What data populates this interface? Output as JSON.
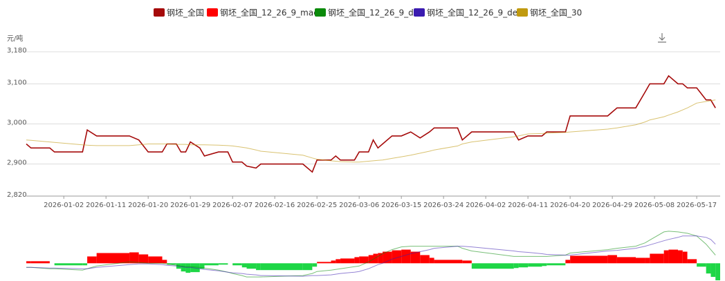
{
  "chart_data": [
    {
      "type": "line",
      "y_label": "元/吨",
      "x": [
        "2025-12-25",
        "2025-12-26",
        "2025-12-30",
        "2025-12-31",
        "2026-01-06",
        "2026-01-07",
        "2026-01-09",
        "2026-01-16",
        "2026-01-18",
        "2026-01-20",
        "2026-01-23",
        "2026-01-24",
        "2026-01-26",
        "2026-01-27",
        "2026-01-28",
        "2026-01-29",
        "2026-01-31",
        "2026-02-01",
        "2026-02-04",
        "2026-02-06",
        "2026-02-07",
        "2026-02-09",
        "2026-02-10",
        "2026-02-12",
        "2026-02-13",
        "2026-02-22",
        "2026-02-24",
        "2026-02-25",
        "2026-02-28",
        "2026-03-01",
        "2026-03-02",
        "2026-03-05",
        "2026-03-06",
        "2026-03-08",
        "2026-03-09",
        "2026-03-10",
        "2026-03-11",
        "2026-03-13",
        "2026-03-15",
        "2026-03-17",
        "2026-03-19",
        "2026-03-21",
        "2026-03-22",
        "2026-03-27",
        "2026-03-28",
        "2026-03-30",
        "2026-04-08",
        "2026-04-09",
        "2026-04-11",
        "2026-04-14",
        "2026-04-15",
        "2026-04-19",
        "2026-04-20",
        "2026-04-28",
        "2026-04-30",
        "2026-05-04",
        "2026-05-06",
        "2026-05-07",
        "2026-05-10",
        "2026-05-11",
        "2026-05-13",
        "2026-05-14",
        "2026-05-15",
        "2026-05-17",
        "2026-05-19",
        "2026-05-20",
        "2026-05-21"
      ],
      "xlim": [
        "2025-12-25",
        "2026-05-22"
      ],
      "xticks": [
        "2026-01-02",
        "2026-01-11",
        "2026-01-20",
        "2026-01-29",
        "2026-02-07",
        "2026-02-16",
        "2026-02-25",
        "2026-03-06",
        "2026-03-15",
        "2026-03-24",
        "2026-04-02",
        "2026-04-11",
        "2026-04-20",
        "2026-04-29",
        "2026-05-08",
        "2026-05-17"
      ],
      "ylim": [
        2820,
        3180
      ],
      "yticks": [
        {
          "value": 2820,
          "label": "2,820"
        },
        {
          "value": 2900,
          "label": "2,900"
        },
        {
          "value": 3000,
          "label": "3,000"
        },
        {
          "value": 3100,
          "label": "3,100"
        },
        {
          "value": 3180,
          "label": "3,180"
        }
      ],
      "grid": true,
      "series": [
        {
          "name": "钢坯_全国",
          "color": "#a50a0a",
          "values": [
            2950,
            2940,
            2940,
            2930,
            2930,
            2985,
            2970,
            2970,
            2960,
            2930,
            2930,
            2950,
            2950,
            2930,
            2930,
            2955,
            2940,
            2920,
            2930,
            2930,
            2905,
            2905,
            2895,
            2890,
            2900,
            2900,
            2880,
            2910,
            2910,
            2920,
            2910,
            2910,
            2930,
            2930,
            2960,
            2940,
            2950,
            2970,
            2970,
            2980,
            2965,
            2980,
            2990,
            2990,
            2960,
            2980,
            2980,
            2960,
            2970,
            2970,
            2980,
            2980,
            3020,
            3020,
            3040,
            3040,
            3080,
            3100,
            3100,
            3120,
            3100,
            3100,
            3090,
            3090,
            3060,
            3060,
            3040
          ]
        },
        {
          "name": "钢坯_全国_30",
          "color": "#c09a10",
          "values": [
            2960,
            2959,
            2955,
            2954,
            2948,
            2947,
            2946,
            2946,
            2948,
            2950,
            2950,
            2950,
            2949,
            2949,
            2949,
            2948,
            2948,
            2948,
            2947,
            2946,
            2945,
            2942,
            2940,
            2935,
            2932,
            2922,
            2915,
            2912,
            2908,
            2907,
            2906,
            2905,
            2905,
            2907,
            2908,
            2909,
            2910,
            2914,
            2918,
            2922,
            2927,
            2932,
            2935,
            2945,
            2950,
            2955,
            2968,
            2970,
            2975,
            2976,
            2977,
            2979,
            2980,
            2987,
            2990,
            2998,
            3005,
            3010,
            3018,
            3022,
            3030,
            3035,
            3040,
            3052,
            3056,
            3058,
            3060
          ]
        }
      ]
    },
    {
      "type": "macd",
      "x": [
        "2025-12-25",
        "2025-12-26",
        "2025-12-30",
        "2025-12-31",
        "2026-01-06",
        "2026-01-07",
        "2026-01-09",
        "2026-01-16",
        "2026-01-18",
        "2026-01-20",
        "2026-01-23",
        "2026-01-24",
        "2026-01-26",
        "2026-01-27",
        "2026-01-28",
        "2026-01-29",
        "2026-01-31",
        "2026-02-01",
        "2026-02-04",
        "2026-02-06",
        "2026-02-07",
        "2026-02-09",
        "2026-02-10",
        "2026-02-12",
        "2026-02-13",
        "2026-02-22",
        "2026-02-24",
        "2026-02-25",
        "2026-02-28",
        "2026-03-01",
        "2026-03-02",
        "2026-03-05",
        "2026-03-06",
        "2026-03-08",
        "2026-03-09",
        "2026-03-10",
        "2026-03-11",
        "2026-03-13",
        "2026-03-15",
        "2026-03-17",
        "2026-03-19",
        "2026-03-21",
        "2026-03-22",
        "2026-03-27",
        "2026-03-28",
        "2026-03-30",
        "2026-04-08",
        "2026-04-09",
        "2026-04-11",
        "2026-04-14",
        "2026-04-15",
        "2026-04-19",
        "2026-04-20",
        "2026-04-28",
        "2026-04-30",
        "2026-05-04",
        "2026-05-06",
        "2026-05-07",
        "2026-05-10",
        "2026-05-11",
        "2026-05-13",
        "2026-05-14",
        "2026-05-15",
        "2026-05-17",
        "2026-05-19",
        "2026-05-20",
        "2026-05-21"
      ],
      "xlim": [
        "2025-12-25",
        "2026-05-22"
      ],
      "ylim": [
        -25,
        54
      ],
      "series": [
        {
          "name": "钢坯_全国_12_26_9_macd",
          "type": "bar",
          "color": "#ff0000",
          "negative_color": "#1ed646",
          "values": [
            3,
            3,
            0,
            -3,
            -3,
            10,
            15,
            16,
            13,
            10,
            5,
            -2,
            -8,
            -12,
            -14,
            -13,
            -8,
            -3,
            -2,
            0,
            -3,
            -6,
            -8,
            -10,
            -10,
            -10,
            -5,
            2,
            4,
            6,
            7,
            9,
            10,
            12,
            14,
            15,
            17,
            19,
            20,
            17,
            12,
            8,
            5,
            5,
            4,
            -8,
            -7,
            -6,
            -5,
            -4,
            -3,
            5,
            11,
            12,
            9,
            8,
            8,
            14,
            19,
            20,
            19,
            17,
            6,
            -5,
            -15,
            -20,
            -25
          ]
        },
        {
          "name": "钢坯_全国_12_26_9_dif",
          "type": "line",
          "color": "#0a8a0a",
          "values": [
            -6,
            -6,
            -8,
            -8,
            -10,
            -8,
            -4,
            2,
            1,
            0,
            0,
            -1,
            -3,
            -4,
            -5,
            -5,
            -6,
            -7,
            -10,
            -13,
            -15,
            -18,
            -20,
            -20,
            -20,
            -18,
            -15,
            -12,
            -10,
            -9,
            -8,
            -5,
            -4,
            2,
            6,
            10,
            14,
            20,
            24,
            25,
            25,
            25,
            25,
            25,
            22,
            18,
            10,
            10,
            10,
            10,
            10,
            12,
            15,
            20,
            22,
            25,
            30,
            34,
            46,
            47,
            46,
            45,
            44,
            40,
            28,
            20,
            12
          ]
        },
        {
          "name": "钢坯_全国_12_26_9_dea",
          "type": "line",
          "color": "#3a1bb0",
          "values": [
            -6,
            -6,
            -7,
            -7,
            -8,
            -8,
            -6,
            -2,
            -1,
            -1,
            -2,
            -3,
            -4,
            -5,
            -6,
            -6,
            -8,
            -9,
            -11,
            -13,
            -14,
            -15,
            -16,
            -17,
            -18,
            -19,
            -18,
            -18,
            -17,
            -16,
            -15,
            -13,
            -12,
            -8,
            -5,
            -2,
            0,
            6,
            10,
            14,
            17,
            20,
            22,
            25,
            25,
            24,
            18,
            17,
            16,
            14,
            13,
            12,
            12,
            18,
            19,
            22,
            25,
            27,
            33,
            35,
            38,
            40,
            40,
            40,
            38,
            35,
            28
          ]
        }
      ]
    }
  ]
}
